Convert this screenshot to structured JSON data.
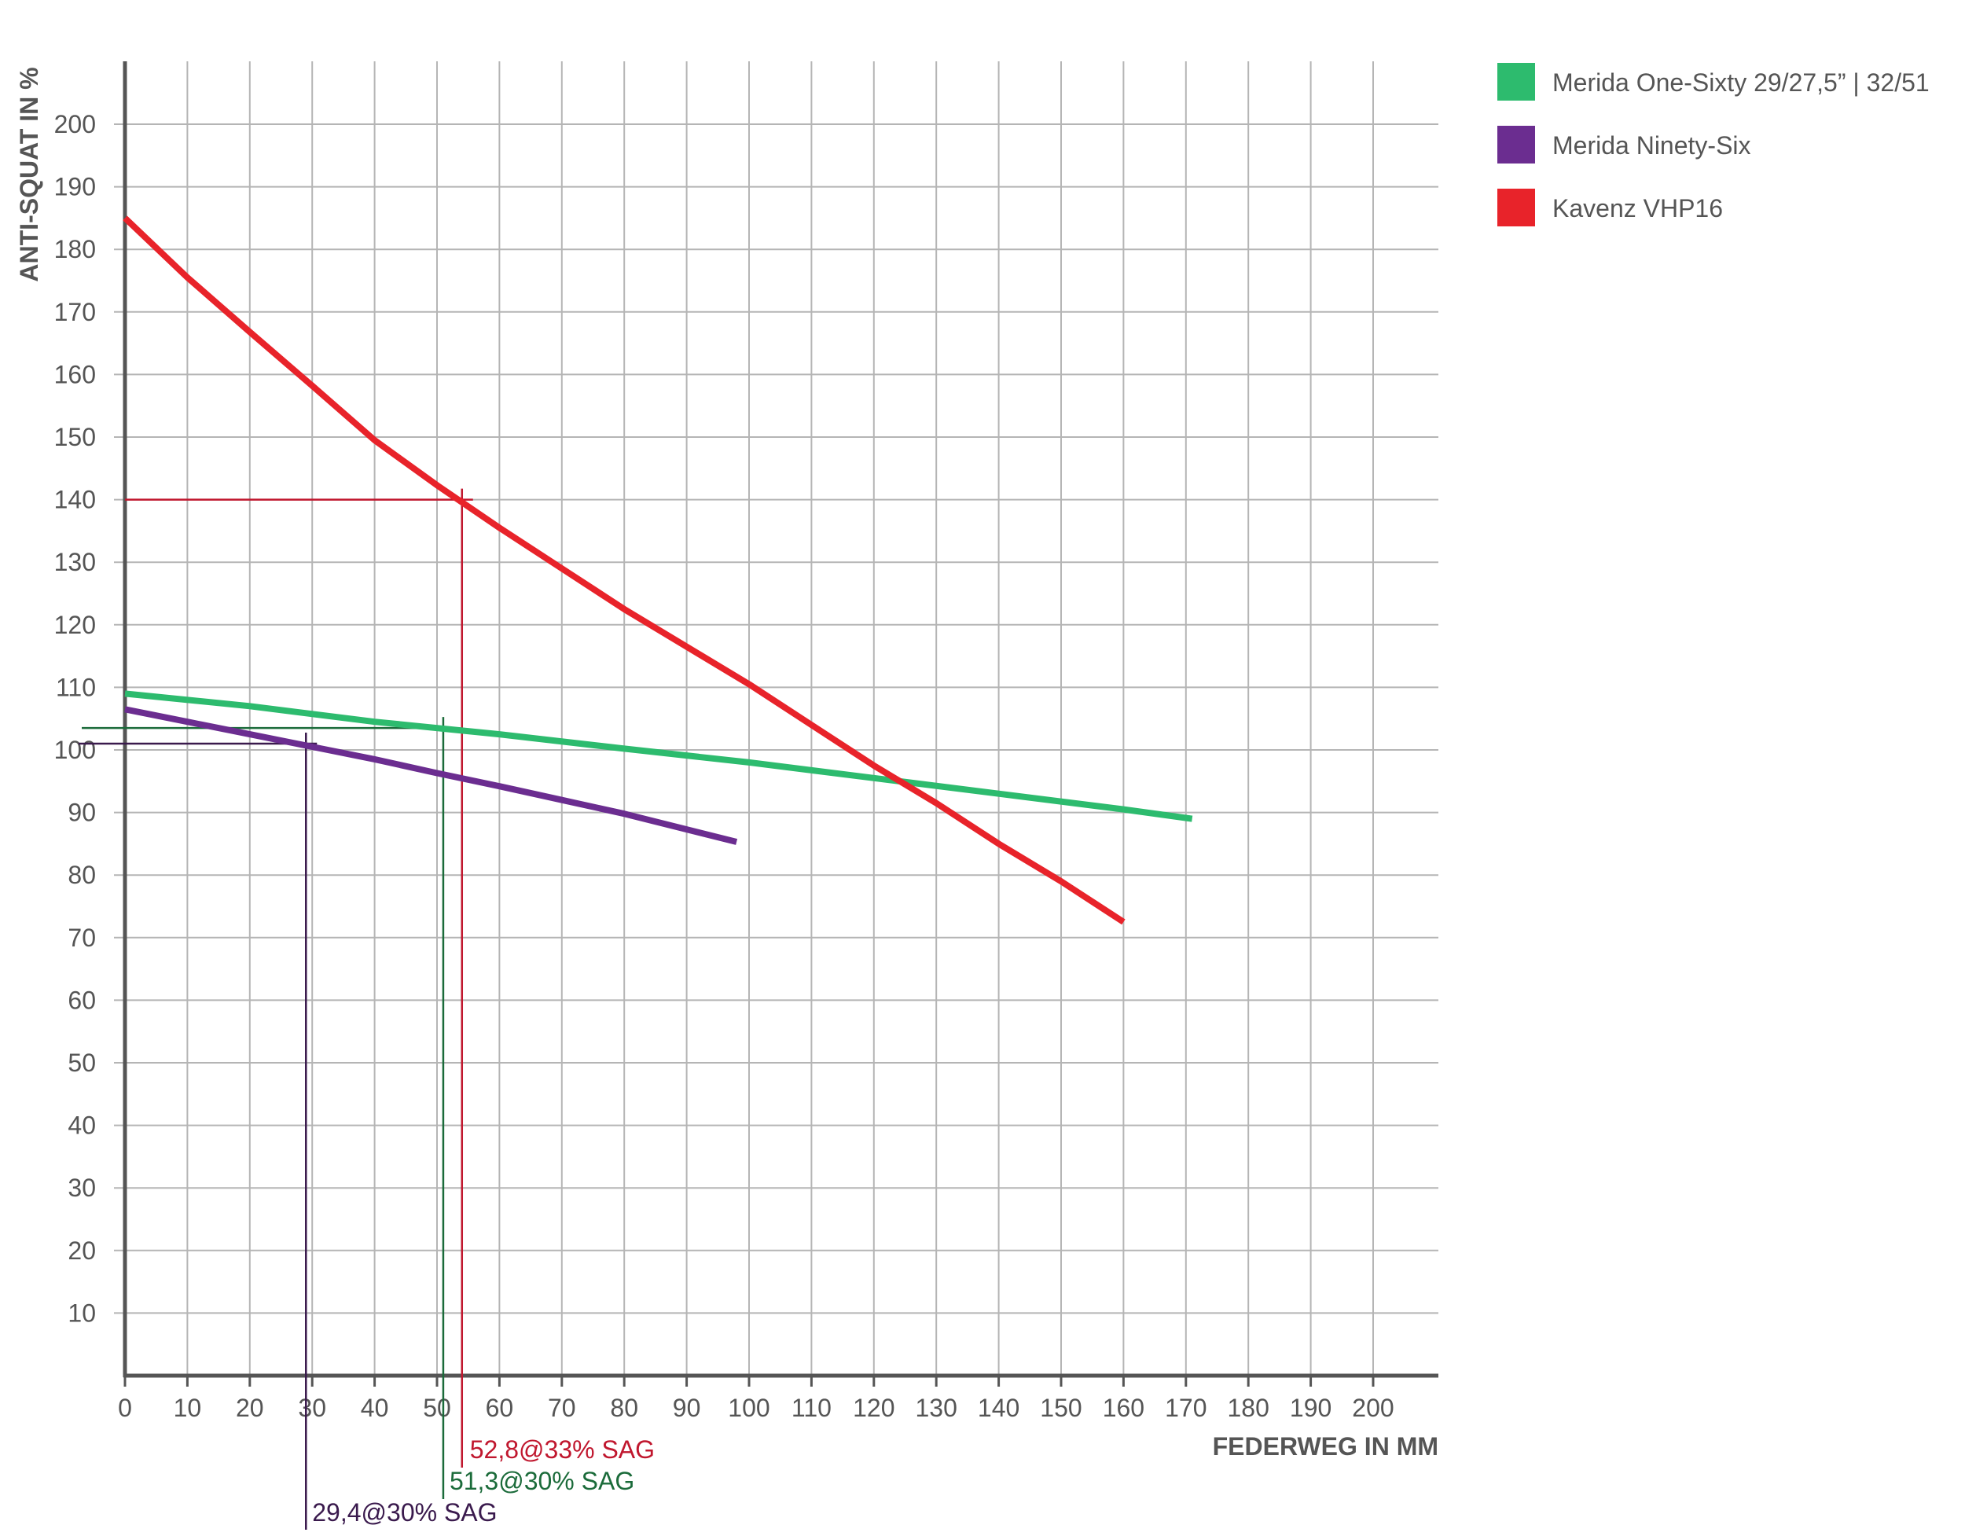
{
  "chart_data": {
    "type": "line",
    "xlabel": "FEDERWEG IN MM",
    "ylabel": "ANTI-SQUAT IN %",
    "xlim": [
      0,
      210
    ],
    "ylim": [
      0,
      210
    ],
    "x_ticks": [
      0,
      10,
      20,
      30,
      40,
      50,
      60,
      70,
      80,
      90,
      100,
      110,
      120,
      130,
      140,
      150,
      160,
      170,
      180,
      190,
      200
    ],
    "y_ticks": [
      10,
      20,
      30,
      40,
      50,
      60,
      70,
      80,
      90,
      100,
      110,
      120,
      130,
      140,
      150,
      160,
      170,
      180,
      190,
      200
    ],
    "grid": true,
    "legend_position": "top-right, outside plot",
    "series": [
      {
        "name": "Merida One-Sixty 29/27,5” | 32/51",
        "color": "#2dbb6e",
        "x": [
          0,
          20,
          40,
          60,
          80,
          100,
          120,
          140,
          160,
          171
        ],
        "y": [
          109,
          107,
          104.5,
          102.5,
          100.2,
          98,
          95.5,
          93,
          90.5,
          89
        ]
      },
      {
        "name": "Merida Ninety-Six",
        "color": "#6b2d90",
        "x": [
          0,
          10,
          20,
          30,
          40,
          50,
          60,
          70,
          80,
          90,
          98
        ],
        "y": [
          106.5,
          104.5,
          102.5,
          100.5,
          98.5,
          96.3,
          94.2,
          92,
          89.8,
          87.3,
          85.3
        ]
      },
      {
        "name": "Kavenz VHP16",
        "color": "#e8232a",
        "x": [
          0,
          10,
          20,
          30,
          40,
          50,
          60,
          70,
          80,
          90,
          100,
          110,
          120,
          130,
          140,
          150,
          160
        ],
        "y": [
          185,
          175.5,
          166.8,
          158.2,
          149.5,
          142.3,
          135.5,
          129,
          122.5,
          116.5,
          110.5,
          104,
          97.5,
          91.5,
          85,
          79,
          72.5
        ]
      }
    ],
    "annotations": [
      {
        "text": "52,8@33% SAG",
        "x": 54,
        "y": 140,
        "color": "#c0172e"
      },
      {
        "text": "51,3@30% SAG",
        "x": 51,
        "y": 103.5,
        "color": "#1b6b3a"
      },
      {
        "text": "29,4@30% SAG",
        "x": 29,
        "y": 101,
        "color": "#3a1a4d"
      }
    ]
  }
}
